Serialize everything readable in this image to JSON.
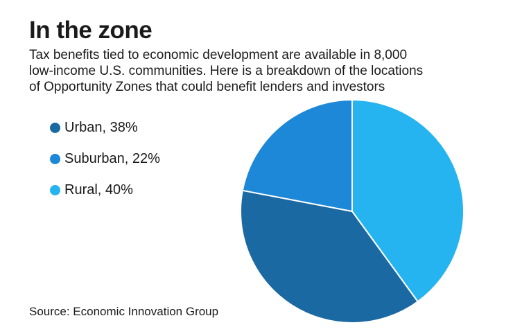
{
  "header": {
    "title": "In the zone",
    "subtitle_lines": [
      "Tax benefits tied to economic development are available in 8,000",
      "low-income U.S. communities. Here is a breakdown of the locations",
      "of Opportunity Zones that could benefit lenders and investors"
    ]
  },
  "legend": {
    "items": [
      {
        "label": "Urban, 38%",
        "color": "#1b69a3"
      },
      {
        "label": "Suburban, 22%",
        "color": "#1d88d8"
      },
      {
        "label": "Rural, 40%",
        "color": "#26b4f0"
      }
    ]
  },
  "footer": {
    "source": "Source: Economic Innovation Group"
  },
  "chart_data": {
    "type": "pie",
    "title": "In the zone",
    "categories": [
      "Rural",
      "Urban",
      "Suburban"
    ],
    "values": [
      40,
      38,
      22
    ],
    "colors": [
      "#26b4f0",
      "#1b69a3",
      "#1d88d8"
    ],
    "start_angle_deg": 0,
    "direction": "clockwise",
    "slice_border_color": "#ffffff",
    "legend_position": "left",
    "labels_on_slices": false
  }
}
